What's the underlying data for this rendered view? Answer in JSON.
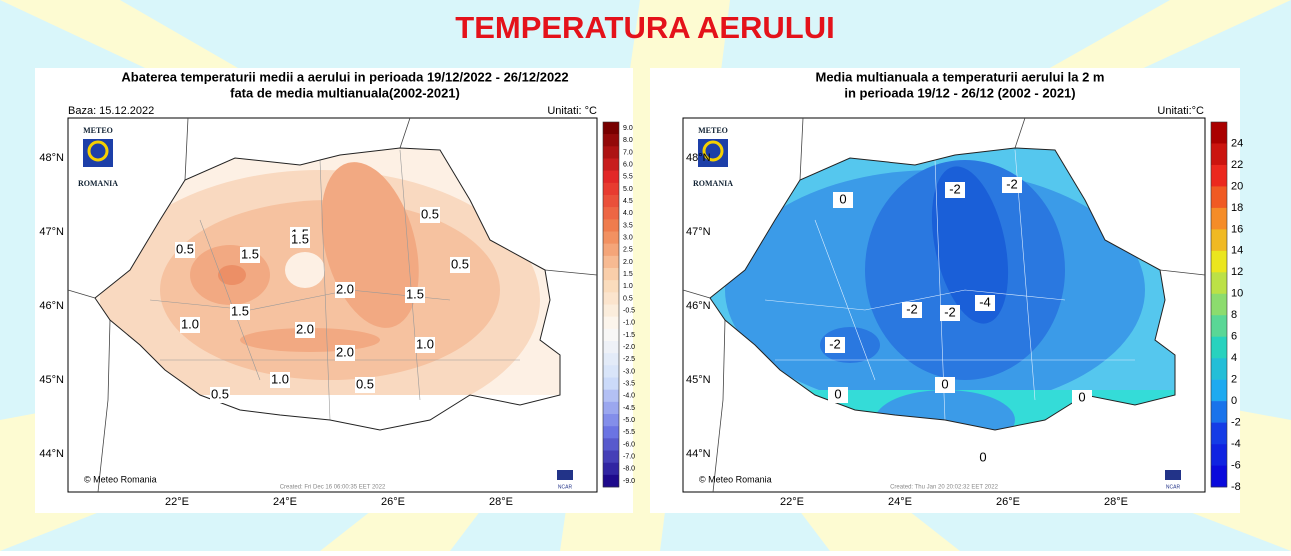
{
  "title": "TEMPERATURA AERULUI",
  "maps": [
    {
      "title_lines": [
        "Abaterea temperaturii medii a aerului in perioada 19/12/2022 - 26/12/2022",
        "fata de media multianuala(2002-2021)"
      ],
      "base": "Baza: 15.12.2022",
      "units": "Unitati: °C",
      "logo": [
        "METEO",
        "ROMANIA"
      ],
      "lat_labels": [
        "48°N",
        "47°N",
        "46°N",
        "45°N",
        "44°N"
      ],
      "lon_labels": [
        "22°E",
        "24°E",
        "26°E",
        "28°E"
      ],
      "colorbar": [
        "9.0",
        "8.0",
        "7.0",
        "6.0",
        "5.5",
        "5.0",
        "4.5",
        "4.0",
        "3.5",
        "3.0",
        "2.5",
        "2.0",
        "1.5",
        "1.0",
        "0.5",
        "-0.5",
        "-1.0",
        "-1.5",
        "-2.0",
        "-2.5",
        "-3.0",
        "-3.5",
        "-4.0",
        "-4.5",
        "-5.0",
        "-5.5",
        "-6.0",
        "-7.0",
        "-8.0",
        "-9.0"
      ],
      "contour_labels": [
        "0.5",
        "1.5",
        "1.5",
        "1.5",
        "0.5",
        "0.5",
        "1.0",
        "1.5",
        "2.0",
        "1.5",
        "2.0",
        "2.0",
        "1.0",
        "1.0",
        "0.5",
        "0.5"
      ],
      "copyright": "© Meteo Romania",
      "created": "Created: Fri Dec 16 06:00:35 EET 2022",
      "ncar": "NCAR"
    },
    {
      "title_lines": [
        "Media multianuala a temperaturii aerului la 2 m",
        "in perioada 19/12 - 26/12 (2002 - 2021)"
      ],
      "units": "Unitati:°C",
      "logo": [
        "METEO",
        "ROMANIA"
      ],
      "lat_labels": [
        "48°N",
        "47°N",
        "46°N",
        "45°N",
        "44°N"
      ],
      "lon_labels": [
        "22°E",
        "24°E",
        "26°E",
        "28°E"
      ],
      "colorbar": [
        "24",
        "22",
        "20",
        "18",
        "16",
        "14",
        "12",
        "10",
        "8",
        "6",
        "4",
        "2",
        "0",
        "-2",
        "-4",
        "-6",
        "-8"
      ],
      "contour_labels": [
        "0",
        "-2",
        "-2",
        "-2",
        "-4",
        "-2",
        "-2",
        "0",
        "0",
        "0",
        "0"
      ],
      "copyright": "© Meteo Romania",
      "created": "Created: Thu Jan 20 20:02:32 EET 2022",
      "ncar": "NCAR"
    }
  ]
}
